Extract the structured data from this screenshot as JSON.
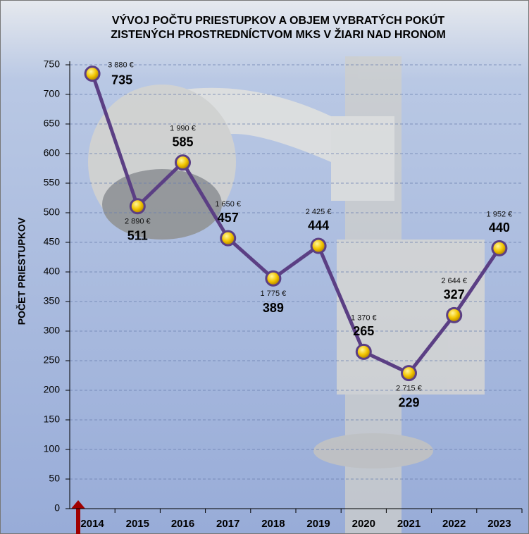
{
  "chart_data": {
    "type": "line",
    "title": [
      "VÝVOJ POČTU PRIESTUPKOV A OBJEM VYBRATÝCH POKÚT",
      "ZISTENÝCH PROSTREDNÍCTVOM MKS V ŽIARI NAD HRONOM"
    ],
    "y_label": "POČET PRIESTUPKOV",
    "categories": [
      "2014",
      "2015",
      "2016",
      "2017",
      "2018",
      "2019",
      "2020",
      "2021",
      "2022",
      "2023"
    ],
    "values": [
      735,
      511,
      585,
      457,
      389,
      444,
      265,
      229,
      327,
      440
    ],
    "fines": [
      "3 880 €",
      "2 890 €",
      "1 990 €",
      "1 650 €",
      "1 775 €",
      "2 425 €",
      "1 370 €",
      "2 715 €",
      "2 644 €",
      "1 952 €"
    ],
    "color": "#5b3f84",
    "marker_color": "#f2c500",
    "ylim": [
      0,
      750
    ],
    "yticks": [
      0,
      50,
      100,
      150,
      200,
      250,
      300,
      350,
      400,
      450,
      500,
      550,
      600,
      650,
      700,
      750
    ],
    "grid": true
  }
}
